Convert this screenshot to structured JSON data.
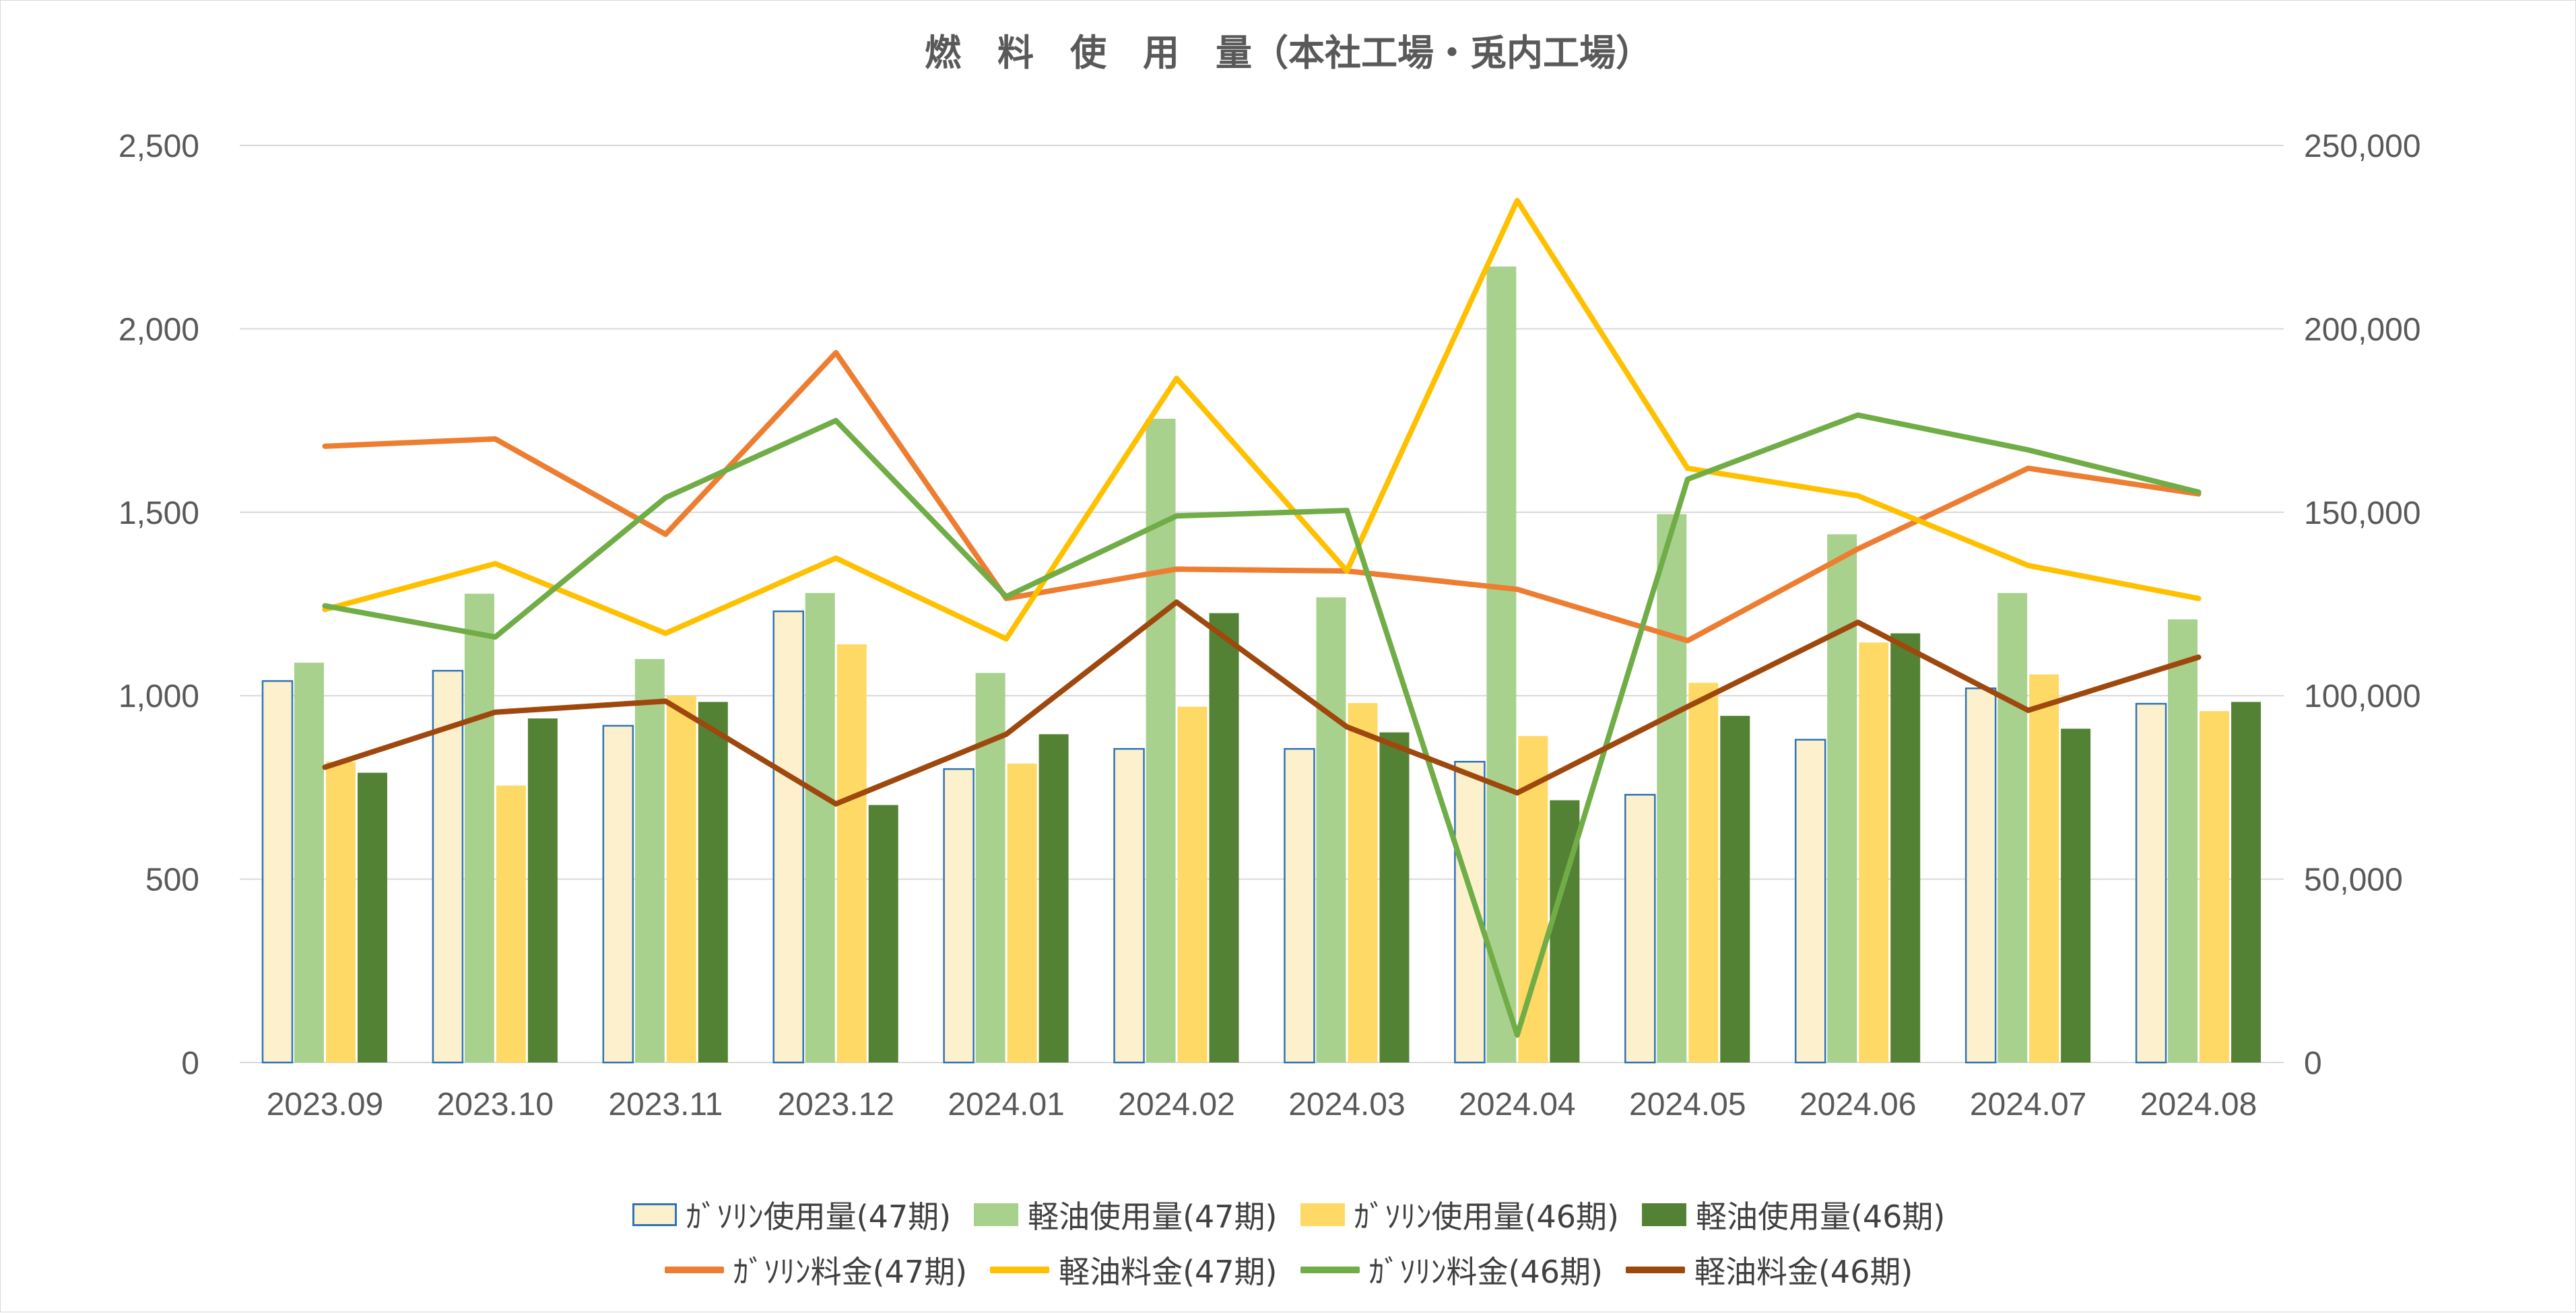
{
  "chart_data": {
    "type": "bar",
    "title": "燃　料　使　用　量（本社工場・兎内工場）",
    "categories": [
      "2023.09",
      "2023.10",
      "2023.11",
      "2023.12",
      "2024.01",
      "2024.02",
      "2024.03",
      "2024.04",
      "2024.05",
      "2024.06",
      "2024.07",
      "2024.08"
    ],
    "y_left": {
      "range": [
        0,
        2500
      ],
      "ticks": [
        "0",
        "500",
        "1,000",
        "1,500",
        "2,000",
        "2,500"
      ]
    },
    "y_right": {
      "range": [
        0,
        250000
      ],
      "ticks": [
        "0",
        "50,000",
        "100,000",
        "150,000",
        "200,000",
        "250,000"
      ]
    },
    "grid": true,
    "legend_position": "bottom",
    "bar_series": [
      {
        "name": "ｶﾞｿﾘﾝ使用量(47期)",
        "color": "#fdf0cd",
        "border": "#2e75b6",
        "axis": "left",
        "values": [
          1040,
          1068,
          918,
          1230,
          800,
          855,
          855,
          820,
          730,
          880,
          1020,
          978
        ]
      },
      {
        "name": "軽油使用量(47期)",
        "color": "#a9d18e",
        "axis": "left",
        "values": [
          1090,
          1278,
          1100,
          1280,
          1062,
          1755,
          1268,
          2170,
          1495,
          1440,
          1280,
          1208
        ]
      },
      {
        "name": "ｶﾞｿﾘﾝ使用量(46期)",
        "color": "#ffd966",
        "axis": "left",
        "values": [
          820,
          755,
          1000,
          1140,
          815,
          970,
          980,
          890,
          1035,
          1145,
          1058,
          958
        ]
      },
      {
        "name": "軽油使用量(46期)",
        "color": "#548235",
        "axis": "left",
        "values": [
          790,
          938,
          983,
          702,
          895,
          1225,
          900,
          715,
          945,
          1170,
          910,
          983
        ]
      }
    ],
    "line_series": [
      {
        "name": "ｶﾞｿﾘﾝ料金(47期)",
        "color": "#ed7d31",
        "axis": "right",
        "values": [
          168000,
          170000,
          144000,
          193500,
          126500,
          134500,
          134000,
          129000,
          115000,
          140000,
          162000,
          155000
        ]
      },
      {
        "name": "軽油料金(47期)",
        "color": "#ffc000",
        "axis": "right",
        "values": [
          123500,
          136000,
          117000,
          137500,
          115500,
          186500,
          134000,
          235000,
          162000,
          154500,
          135500,
          126500
        ]
      },
      {
        "name": "ｶﾞｿﾘﾝ料金(46期)",
        "color": "#70ad47",
        "axis": "right",
        "values": [
          124500,
          116000,
          154000,
          175000,
          127000,
          149000,
          150500,
          7500,
          159000,
          176500,
          167000,
          155500
        ]
      },
      {
        "name": "軽油料金(46期)",
        "color": "#9e480e",
        "axis": "right",
        "values": [
          80500,
          95500,
          98500,
          70500,
          89500,
          125500,
          91500,
          73500,
          97000,
          120000,
          96000,
          110500
        ]
      }
    ]
  }
}
